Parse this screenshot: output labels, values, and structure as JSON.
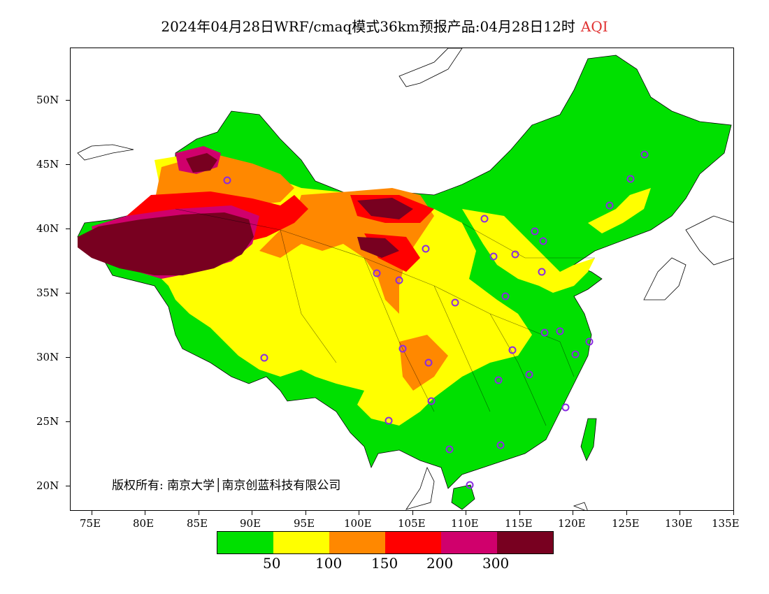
{
  "title": {
    "text": "2024年04月28日WRF/cmaq模式36km预报产品:04月28日12时",
    "variable": "AQI"
  },
  "axes": {
    "lat_labels": [
      "50N",
      "45N",
      "40N",
      "35N",
      "30N",
      "25N",
      "20N"
    ],
    "lon_labels": [
      "75E",
      "80E",
      "85E",
      "90E",
      "95E",
      "100E",
      "105E",
      "110E",
      "115E",
      "120E",
      "125E",
      "130E",
      "135E"
    ]
  },
  "copyright": "版权所有: 南京大学│南京创蓝科技有限公司",
  "legend": {
    "colors": [
      "#00e000",
      "#ffff00",
      "#ff8800",
      "#ff0000",
      "#d0006c",
      "#780020"
    ],
    "labels": [
      "50",
      "100",
      "150",
      "200",
      "300"
    ]
  },
  "colors": {
    "good": "#00e000",
    "moderate": "#ffff00",
    "usg": "#ff8800",
    "unhealthy": "#ff0000",
    "very_unhealthy": "#d0006c",
    "hazardous": "#780020",
    "city_marker": "#8a2be2"
  }
}
